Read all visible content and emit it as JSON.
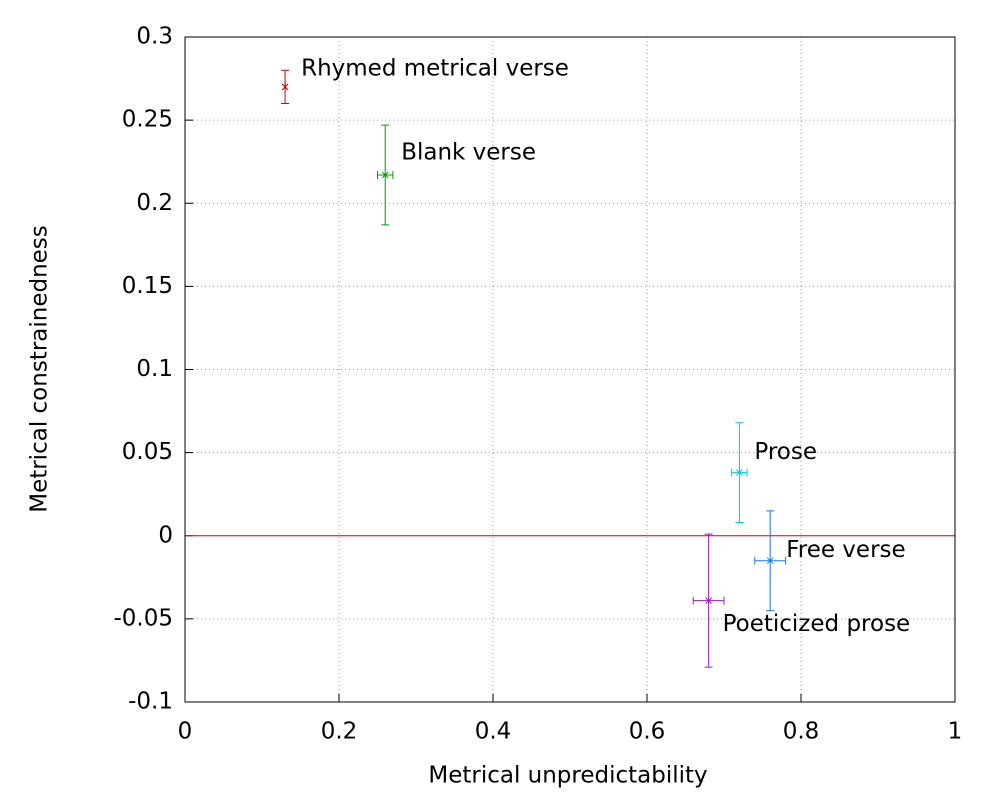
{
  "chart_data": {
    "type": "errorbar-scatter",
    "xlabel": "Metrical unpredictability",
    "ylabel": "Metrical constrainedness",
    "xlim": [
      0,
      1
    ],
    "xticks": [
      0,
      0.2,
      0.4,
      0.6,
      0.8,
      1
    ],
    "ylim": [
      -0.1,
      0.3
    ],
    "yticks": [
      -0.1,
      -0.05,
      0,
      0.05,
      0.1,
      0.15,
      0.2,
      0.25,
      0.3
    ],
    "grid": true,
    "hline": {
      "value": 0,
      "color": "#e00000"
    },
    "series": [
      {
        "name": "Rhymed metrical verse",
        "color": "#d00000",
        "x": [
          0.13
        ],
        "y": [
          0.27
        ],
        "xerr": [
          0
        ],
        "yerr": [
          0.01
        ]
      },
      {
        "name": "Blank verse",
        "color": "#00a000",
        "x": [
          0.26
        ],
        "y": [
          0.217
        ],
        "xerr": [
          0.01
        ],
        "yerr": [
          0.03
        ]
      },
      {
        "name": "Prose",
        "color": "#00c8d0",
        "x": [
          0.72
        ],
        "y": [
          0.038
        ],
        "xerr": [
          0.01
        ],
        "yerr": [
          0.03
        ]
      },
      {
        "name": "Free verse",
        "color": "#1878e0",
        "x": [
          0.76
        ],
        "y": [
          -0.015
        ],
        "xerr": [
          0.02
        ],
        "yerr": [
          0.03
        ]
      },
      {
        "name": "Poeticized prose",
        "color": "#9020c0",
        "x": [
          0.68
        ],
        "y": [
          -0.039
        ],
        "xerr": [
          0.02
        ],
        "yerr": [
          0.04
        ]
      }
    ]
  }
}
